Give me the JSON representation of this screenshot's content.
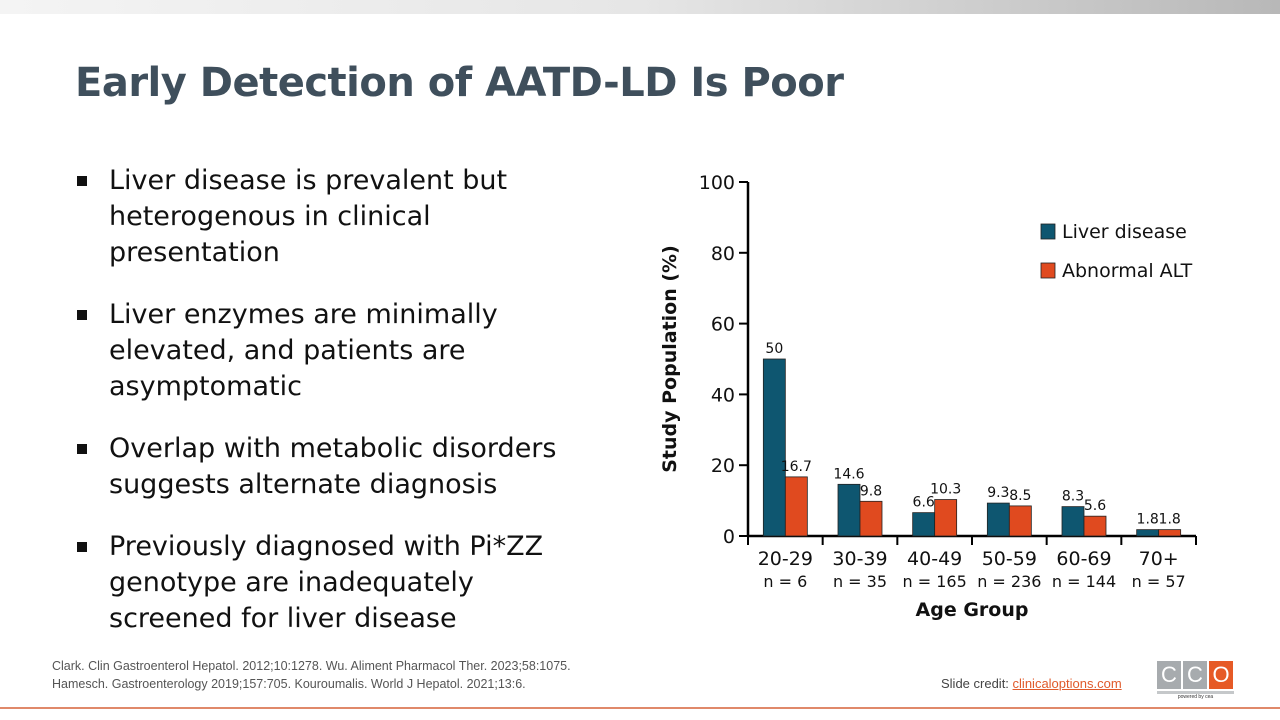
{
  "title": "Early Detection of AATD-LD Is Poor",
  "bullets": [
    "Liver disease is prevalent but heterogenous in clinical presentation",
    "Liver enzymes are minimally elevated, and patients are asymptomatic",
    "Overlap with metabolic disorders suggests alternate diagnosis",
    "Previously diagnosed with Pi*ZZ genotype are inadequately screened for liver disease"
  ],
  "references": [
    "Clark. Clin Gastroenterol Hepatol. 2012;10:1278. Wu. Aliment Pharmacol Ther. 2023;58:1075.",
    "Hamesch. Gastroenterology 2019;157:705. Kouroumalis. World J Hepatol. 2021;13:6."
  ],
  "credit": {
    "label": "Slide credit: ",
    "link": "clinicaloptions.com"
  },
  "logo": {
    "letters": [
      "C",
      "C",
      "O"
    ],
    "tagline": "powered by cea"
  },
  "colors": {
    "liver": "#0e5670",
    "alt": "#e04a1f"
  },
  "chart_data": {
    "type": "bar",
    "categories": [
      "20-29",
      "30-39",
      "40-49",
      "50-59",
      "60-69",
      "70+"
    ],
    "sublabels": [
      "n = 6",
      "n = 35",
      "n = 165",
      "n = 236",
      "n = 144",
      "n = 57"
    ],
    "series": [
      {
        "name": "Liver disease",
        "values": [
          50,
          14.6,
          6.6,
          9.3,
          8.3,
          1.8
        ],
        "labels": [
          "50",
          "14.6",
          "6.6",
          "9.3",
          "8.3",
          "1.8"
        ]
      },
      {
        "name": "Abnormal ALT",
        "values": [
          16.7,
          9.8,
          10.3,
          8.5,
          5.6,
          1.8
        ],
        "labels": [
          "16.7",
          "9.8",
          "10.3",
          "8.5",
          "5.6",
          "1.8"
        ]
      }
    ],
    "xlabel": "Age Group",
    "ylabel": "Study Population (%)",
    "ylim": [
      0,
      100
    ],
    "yticks": [
      "0",
      "20",
      "40",
      "60",
      "80",
      "100"
    ],
    "ytick_values": [
      0,
      20,
      40,
      60,
      80,
      100
    ],
    "legend": "top-right",
    "grid": false
  }
}
